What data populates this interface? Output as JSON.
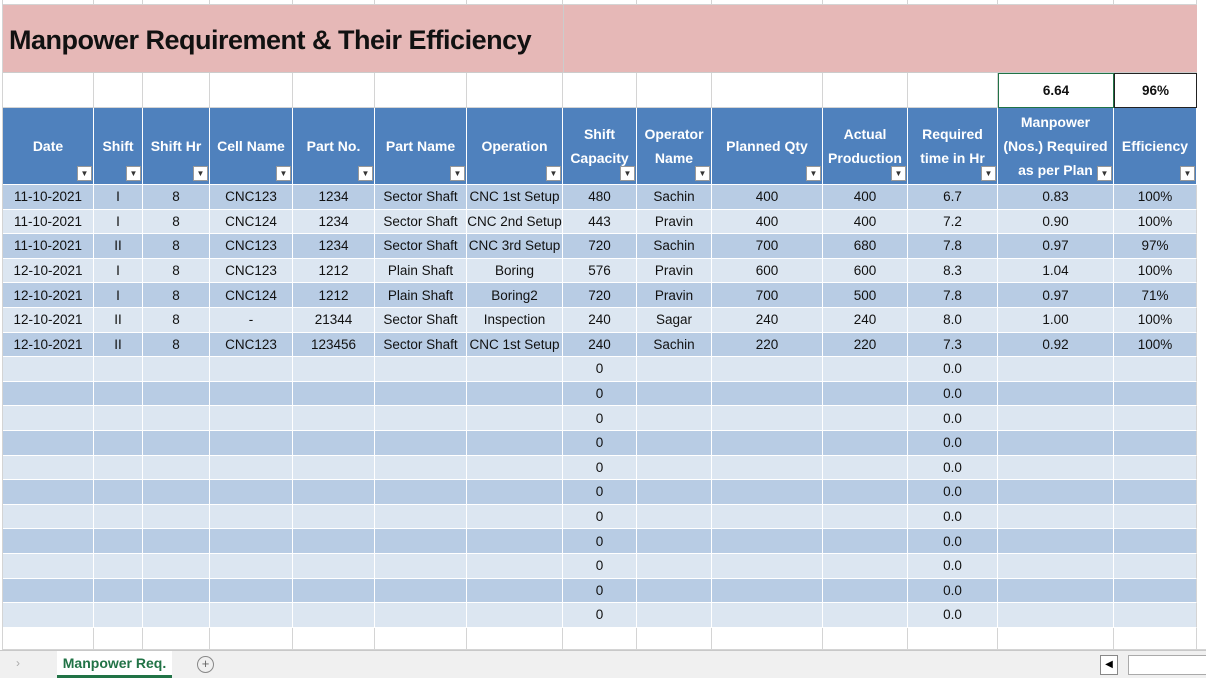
{
  "title": "Manpower Requirement & Their Efficiency",
  "summary": {
    "manpower_total": "6.64",
    "efficiency_total": "96%"
  },
  "table": {
    "headers": [
      "Date",
      "Shift",
      "Shift Hr",
      "Cell Name",
      "Part No.",
      "Part Name",
      "Operation",
      "Shift Capacity",
      "Operator Name",
      "Planned Qty",
      "Actual Production",
      "Required time in Hr",
      "Manpower (Nos.) Required as per Plan",
      "Efficiency"
    ],
    "rows": [
      [
        "11-10-2021",
        "I",
        "8",
        "CNC123",
        "1234",
        "Sector Shaft",
        "CNC 1st Setup",
        "480",
        "Sachin",
        "400",
        "400",
        "6.7",
        "0.83",
        "100%"
      ],
      [
        "11-10-2021",
        "I",
        "8",
        "CNC124",
        "1234",
        "Sector Shaft",
        "CNC 2nd Setup",
        "443",
        "Pravin",
        "400",
        "400",
        "7.2",
        "0.90",
        "100%"
      ],
      [
        "11-10-2021",
        "II",
        "8",
        "CNC123",
        "1234",
        "Sector Shaft",
        "CNC 3rd Setup",
        "720",
        "Sachin",
        "700",
        "680",
        "7.8",
        "0.97",
        "97%"
      ],
      [
        "12-10-2021",
        "I",
        "8",
        "CNC123",
        "1212",
        "Plain Shaft",
        "Boring",
        "576",
        "Pravin",
        "600",
        "600",
        "8.3",
        "1.04",
        "100%"
      ],
      [
        "12-10-2021",
        "I",
        "8",
        "CNC124",
        "1212",
        "Plain Shaft",
        "Boring2",
        "720",
        "Pravin",
        "700",
        "500",
        "7.8",
        "0.97",
        "71%"
      ],
      [
        "12-10-2021",
        "II",
        "8",
        "-",
        "21344",
        "Sector Shaft",
        "Inspection",
        "240",
        "Sagar",
        "240",
        "240",
        "8.0",
        "1.00",
        "100%"
      ],
      [
        "12-10-2021",
        "II",
        "8",
        "CNC123",
        "123456",
        "Sector Shaft",
        "CNC 1st Setup",
        "240",
        "Sachin",
        "220",
        "220",
        "7.3",
        "0.92",
        "100%"
      ],
      [
        null,
        null,
        null,
        null,
        null,
        null,
        null,
        "0",
        null,
        null,
        null,
        "0.0",
        null,
        null
      ],
      [
        null,
        null,
        null,
        null,
        null,
        null,
        null,
        "0",
        null,
        null,
        null,
        "0.0",
        null,
        null
      ],
      [
        null,
        null,
        null,
        null,
        null,
        null,
        null,
        "0",
        null,
        null,
        null,
        "0.0",
        null,
        null
      ],
      [
        null,
        null,
        null,
        null,
        null,
        null,
        null,
        "0",
        null,
        null,
        null,
        "0.0",
        null,
        null
      ],
      [
        null,
        null,
        null,
        null,
        null,
        null,
        null,
        "0",
        null,
        null,
        null,
        "0.0",
        null,
        null
      ],
      [
        null,
        null,
        null,
        null,
        null,
        null,
        null,
        "0",
        null,
        null,
        null,
        "0.0",
        null,
        null
      ],
      [
        null,
        null,
        null,
        null,
        null,
        null,
        null,
        "0",
        null,
        null,
        null,
        "0.0",
        null,
        null
      ],
      [
        null,
        null,
        null,
        null,
        null,
        null,
        null,
        "0",
        null,
        null,
        null,
        "0.0",
        null,
        null
      ],
      [
        null,
        null,
        null,
        null,
        null,
        null,
        null,
        "0",
        null,
        null,
        null,
        "0.0",
        null,
        null
      ],
      [
        null,
        null,
        null,
        null,
        null,
        null,
        null,
        "0",
        null,
        null,
        null,
        "0.0",
        null,
        null
      ],
      [
        null,
        null,
        null,
        null,
        null,
        null,
        null,
        "0",
        null,
        null,
        null,
        "0.0",
        null,
        null
      ]
    ]
  },
  "sheet_tab": "Manpower Req."
}
